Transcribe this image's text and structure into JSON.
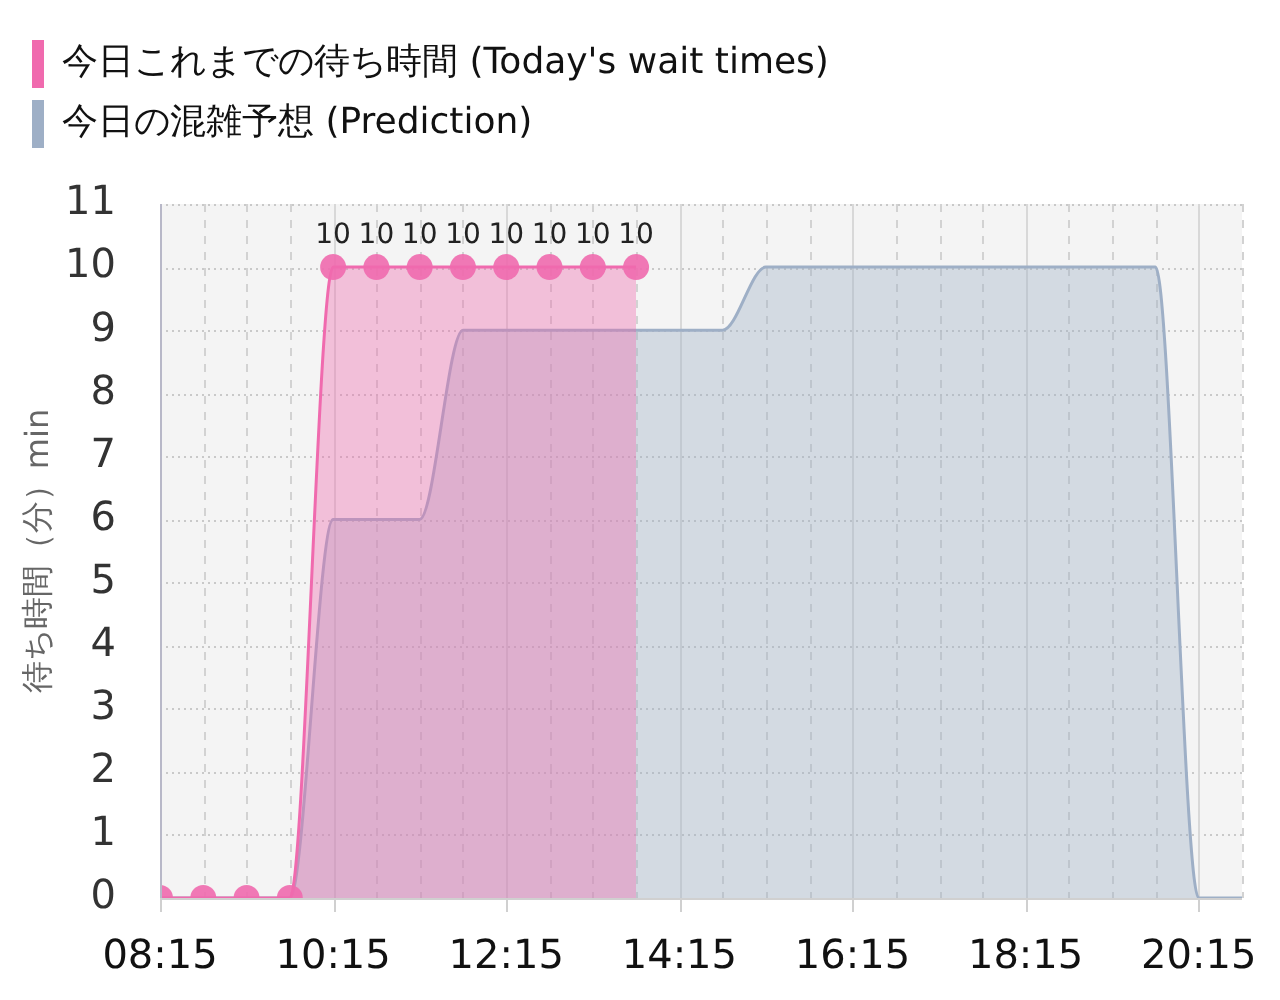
{
  "chart_data": {
    "type": "area",
    "ylabel": "待ち時間（分）min",
    "series": [
      {
        "name": "今日これまでの待ち時間 (Today's wait times)",
        "color": "#f06aae",
        "marker": "circle",
        "x": [
          8.25,
          8.75,
          9.25,
          9.75,
          10.25,
          10.75,
          11.25,
          11.75,
          12.25,
          12.75,
          13.25,
          13.75
        ],
        "values": [
          0,
          0,
          0,
          0,
          10,
          10,
          10,
          10,
          10,
          10,
          10,
          10
        ],
        "value_labels": [
          null,
          null,
          null,
          null,
          "10",
          "10",
          "10",
          "10",
          "10",
          "10",
          "10",
          "10"
        ]
      },
      {
        "name": "今日の混雑予想 (Prediction)",
        "color": "#9eafc6",
        "marker": "none",
        "x": [
          8.25,
          8.75,
          9.25,
          9.75,
          10.25,
          10.75,
          11.25,
          11.75,
          12.25,
          12.75,
          13.25,
          13.75,
          14.25,
          14.75,
          15.25,
          15.75,
          16.25,
          16.75,
          17.25,
          17.75,
          18.25,
          18.75,
          19.25,
          19.75,
          20.25,
          20.75
        ],
        "values": [
          0,
          0,
          0,
          0,
          6,
          6,
          6,
          9,
          9,
          9,
          9,
          9,
          9,
          9,
          10,
          10,
          10,
          10,
          10,
          10,
          10,
          10,
          10,
          10,
          0,
          0
        ]
      }
    ],
    "xlim": [
      8.25,
      20.75
    ],
    "xticks": [
      {
        "value": 8.25,
        "label": "08:15"
      },
      {
        "value": 8.75,
        "label": null
      },
      {
        "value": 9.25,
        "label": null
      },
      {
        "value": 9.75,
        "label": null
      },
      {
        "value": 10.25,
        "label": "10:15"
      },
      {
        "value": 10.75,
        "label": null
      },
      {
        "value": 11.25,
        "label": null
      },
      {
        "value": 11.75,
        "label": null
      },
      {
        "value": 12.25,
        "label": "12:15"
      },
      {
        "value": 12.75,
        "label": null
      },
      {
        "value": 13.25,
        "label": null
      },
      {
        "value": 13.75,
        "label": null
      },
      {
        "value": 14.25,
        "label": "14:15"
      },
      {
        "value": 14.75,
        "label": null
      },
      {
        "value": 15.25,
        "label": null
      },
      {
        "value": 15.75,
        "label": null
      },
      {
        "value": 16.25,
        "label": "16:15"
      },
      {
        "value": 16.75,
        "label": null
      },
      {
        "value": 17.25,
        "label": null
      },
      {
        "value": 17.75,
        "label": null
      },
      {
        "value": 18.25,
        "label": "18:15"
      },
      {
        "value": 18.75,
        "label": null
      },
      {
        "value": 19.25,
        "label": null
      },
      {
        "value": 19.75,
        "label": null
      },
      {
        "value": 20.25,
        "label": "20:15"
      },
      {
        "value": 20.75,
        "label": null
      }
    ],
    "ylim": [
      0,
      11
    ],
    "yticks": [
      0,
      1,
      2,
      3,
      4,
      5,
      6,
      7,
      8,
      9,
      10,
      11
    ],
    "grid": true,
    "legend": "top left"
  }
}
